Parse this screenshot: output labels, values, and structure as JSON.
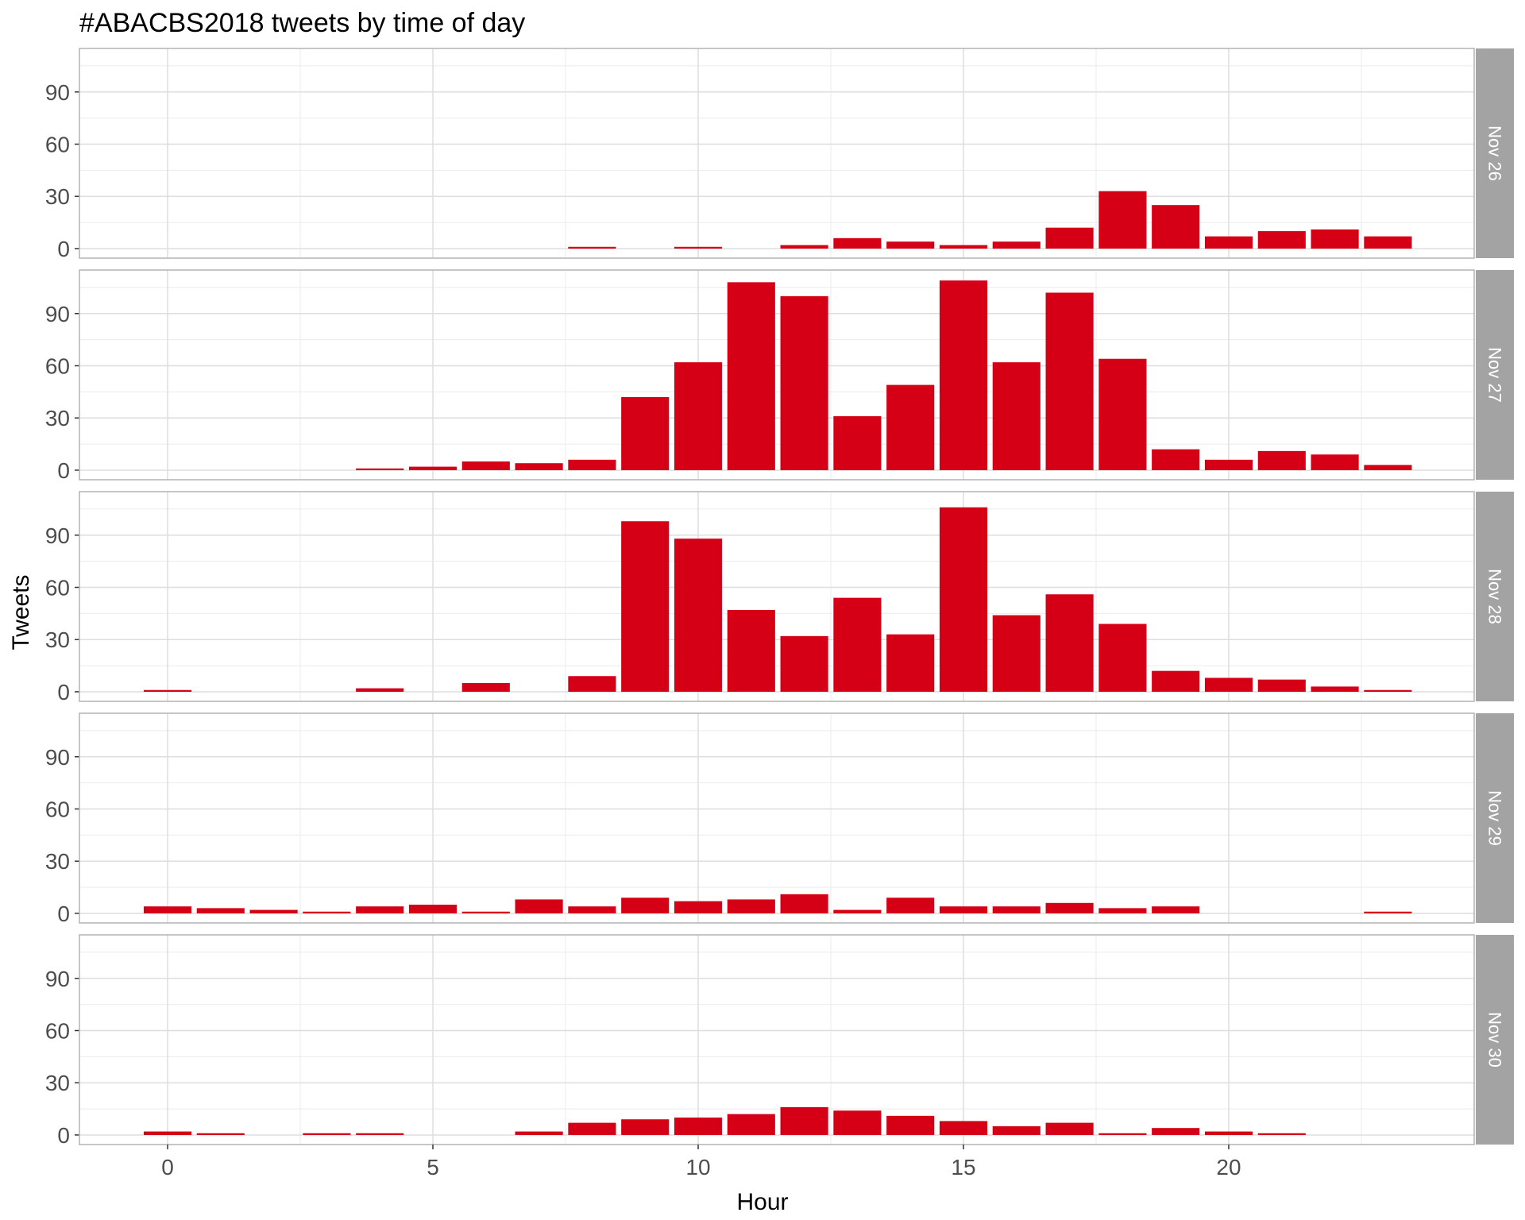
{
  "chart_data": {
    "type": "bar",
    "title": "#ABACBS2018 tweets by time of day",
    "xlabel": "Hour",
    "ylabel": "Tweets",
    "xlim": [
      -1.65,
      24.65
    ],
    "ylim": [
      -5.5,
      115
    ],
    "x_ticks": [
      0,
      5,
      10,
      15,
      20
    ],
    "y_ticks": [
      0,
      30,
      60,
      90
    ],
    "bar_color": "#d50016",
    "strip_color": "#a3a3a3",
    "grid": true,
    "facets": [
      {
        "label": "Nov 26",
        "hours": [
          8,
          10,
          12,
          13,
          14,
          15,
          16,
          17,
          18,
          19,
          20,
          21,
          22,
          23
        ],
        "values": [
          1,
          1,
          2,
          6,
          4,
          2,
          4,
          12,
          33,
          25,
          7,
          10,
          11,
          7
        ]
      },
      {
        "label": "Nov 27",
        "hours": [
          4,
          5,
          6,
          7,
          8,
          9,
          10,
          11,
          12,
          13,
          14,
          15,
          16,
          17,
          18,
          19,
          20,
          21,
          22,
          23
        ],
        "values": [
          1,
          2,
          5,
          4,
          6,
          42,
          62,
          108,
          100,
          31,
          49,
          109,
          62,
          102,
          64,
          12,
          6,
          11,
          9,
          3
        ]
      },
      {
        "label": "Nov 28",
        "hours": [
          0,
          4,
          6,
          8,
          9,
          10,
          11,
          12,
          13,
          14,
          15,
          16,
          17,
          18,
          19,
          20,
          21,
          22,
          23
        ],
        "values": [
          1,
          2,
          5,
          9,
          98,
          88,
          47,
          32,
          54,
          33,
          106,
          44,
          56,
          39,
          12,
          8,
          7,
          3,
          1
        ]
      },
      {
        "label": "Nov 29",
        "hours": [
          0,
          1,
          2,
          3,
          4,
          5,
          6,
          7,
          8,
          9,
          10,
          11,
          12,
          13,
          14,
          15,
          16,
          17,
          18,
          19,
          23
        ],
        "values": [
          4,
          3,
          2,
          1,
          4,
          5,
          1,
          8,
          4,
          9,
          7,
          8,
          11,
          2,
          9,
          4,
          4,
          6,
          3,
          4,
          1
        ]
      },
      {
        "label": "Nov 30",
        "hours": [
          0,
          1,
          3,
          4,
          7,
          8,
          9,
          10,
          11,
          12,
          13,
          14,
          15,
          16,
          17,
          18,
          19,
          20,
          21
        ],
        "values": [
          2,
          1,
          1,
          1,
          2,
          7,
          9,
          10,
          12,
          16,
          14,
          11,
          8,
          5,
          7,
          1,
          4,
          2,
          1
        ]
      }
    ]
  }
}
